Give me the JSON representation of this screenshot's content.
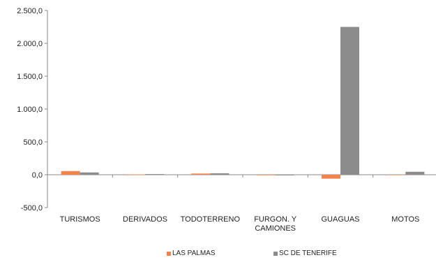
{
  "chart_data": {
    "type": "bar",
    "categories": [
      "TURISMOS",
      "DERIVADOS",
      "TODOTERRENO",
      "FURGON. Y\nCAMIONES",
      "GUAGUAS",
      "MOTOS"
    ],
    "series": [
      {
        "name": "LAS PALMAS",
        "color": "#f4824a",
        "values": [
          55,
          5,
          18,
          -8,
          -60,
          0
        ]
      },
      {
        "name": "SC DE TENERIFE",
        "color": "#8c8c8c",
        "values": [
          35,
          10,
          22,
          -10,
          2250,
          45
        ]
      }
    ],
    "ylim": [
      -500,
      2500
    ],
    "yticks": [
      -500,
      0,
      500,
      1000,
      1500,
      2000,
      2500
    ],
    "ytick_labels": [
      "-500,0",
      "0,0",
      "500,0",
      "1.000,0",
      "1.500,0",
      "2.000,0",
      "2.500,0"
    ],
    "grid": false,
    "legend_position": "bottom"
  }
}
